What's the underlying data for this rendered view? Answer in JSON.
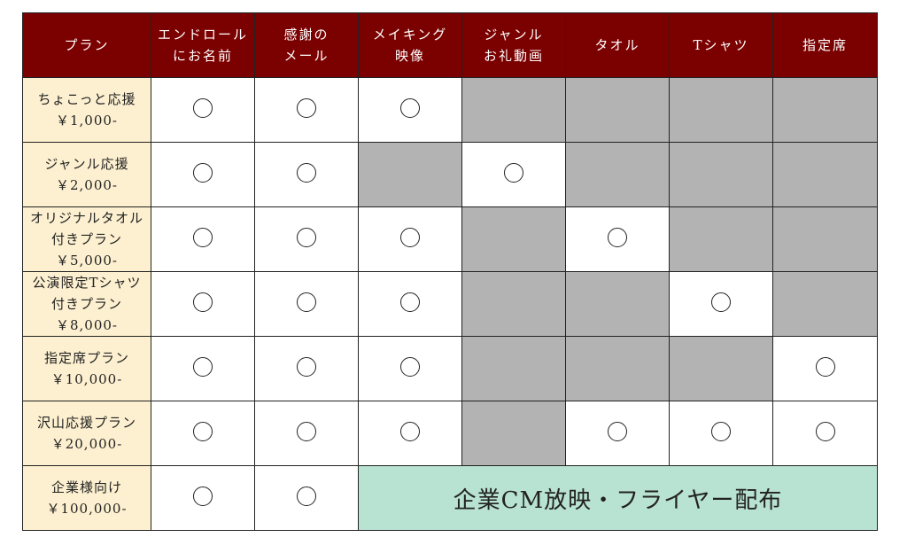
{
  "colors": {
    "header": "#7b0000",
    "plan_column": "#fdf0d0",
    "unavailable": "#b3b3b3",
    "banner": "#b8e2d2"
  },
  "headers": [
    [
      "プラン"
    ],
    [
      "エンドロール",
      "にお名前"
    ],
    [
      "感謝の",
      "メール"
    ],
    [
      "メイキング",
      "映像"
    ],
    [
      "ジャンル",
      "お礼動画"
    ],
    [
      "タオル"
    ],
    [
      "Tシャツ"
    ],
    [
      "指定席"
    ]
  ],
  "rows": [
    {
      "plan": [
        "ちょこっと応援",
        "￥1,000-"
      ],
      "cells": [
        "o",
        "o",
        "o",
        "g",
        "g",
        "g",
        "g"
      ]
    },
    {
      "plan": [
        "ジャンル応援",
        "￥2,000-"
      ],
      "cells": [
        "o",
        "o",
        "g",
        "o",
        "g",
        "g",
        "g"
      ]
    },
    {
      "plan": [
        "オリジナルタオル",
        "付きプラン",
        "￥5,000-"
      ],
      "cells": [
        "o",
        "o",
        "o",
        "g",
        "o",
        "g",
        "g"
      ]
    },
    {
      "plan": [
        "公演限定Tシャツ",
        "付きプラン",
        "￥8,000-"
      ],
      "cells": [
        "o",
        "o",
        "o",
        "g",
        "g",
        "o",
        "g"
      ]
    },
    {
      "plan": [
        "指定席プラン",
        "￥10,000-"
      ],
      "cells": [
        "o",
        "o",
        "o",
        "g",
        "g",
        "g",
        "o"
      ]
    },
    {
      "plan": [
        "沢山応援プラン",
        "￥20,000-"
      ],
      "cells": [
        "o",
        "o",
        "o",
        "g",
        "o",
        "o",
        "o"
      ]
    },
    {
      "plan": [
        "企業様向け",
        "￥100,000-"
      ],
      "cells": [
        "o",
        "o"
      ],
      "banner": "企業CM放映・フライヤー配布"
    }
  ],
  "legend": {
    "available_symbol": "circle",
    "unavailable": "gray"
  }
}
